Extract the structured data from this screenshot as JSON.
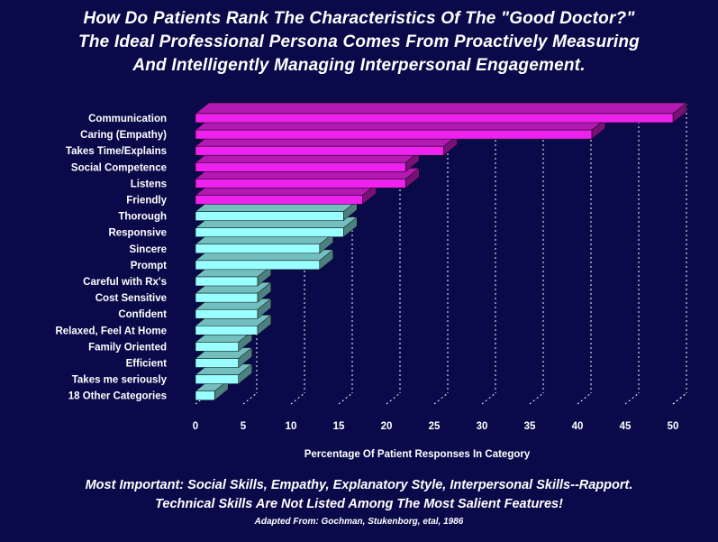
{
  "title": {
    "line1": "How Do Patients Rank The Characteristics Of The \"Good Doctor?\"",
    "line2": "The Ideal Professional Persona Comes From Proactively Measuring",
    "line3": "And Intelligently Managing Interpersonal Engagement."
  },
  "footer": {
    "line1": "Most Important: Social Skills, Empathy, Explanatory Style, Interpersonal  Skills--Rapport.",
    "line2": "Technical Skills Are Not Listed Among The Most Salient Features!",
    "source": "Adapted From: Gochman, Stukenborg, etal, 1986"
  },
  "colors": {
    "background": "#0a0a4a",
    "group_top": "#ee22ee",
    "group_mid": "#99ffff",
    "gridline": "#ffffff"
  },
  "chart_data": {
    "type": "bar",
    "orientation": "horizontal",
    "xlabel": "Percentage Of Patient Responses In Category",
    "xlim": [
      0,
      50
    ],
    "xticks": [
      0,
      5,
      10,
      15,
      20,
      25,
      30,
      35,
      40,
      45,
      50
    ],
    "grid": "vertical dashed",
    "categories": [
      "Communication",
      "Caring (Empathy)",
      "Takes Time/Explains",
      "Social Competence",
      "Listens",
      "Friendly",
      "Thorough",
      "Responsive",
      "Sincere",
      "Prompt",
      "Careful with Rx's",
      "Cost Sensitive",
      "Confident",
      "Relaxed, Feel At Home",
      "Family Oriented",
      "Efficient",
      "Takes me seriously",
      "18 Other Categories"
    ],
    "values": [
      50,
      41.5,
      26,
      22,
      22,
      17.5,
      15.5,
      15.5,
      13,
      13,
      6.5,
      6.5,
      6.5,
      6.5,
      4.5,
      4.5,
      4.5,
      2
    ],
    "bar_colors": [
      "#ee22ee",
      "#ee22ee",
      "#ee22ee",
      "#ee22ee",
      "#ee22ee",
      "#ee22ee",
      "#99ffff",
      "#99ffff",
      "#99ffff",
      "#99ffff",
      "#99ffff",
      "#99ffff",
      "#99ffff",
      "#99ffff",
      "#99ffff",
      "#99ffff",
      "#99ffff",
      "#99ffff"
    ]
  }
}
